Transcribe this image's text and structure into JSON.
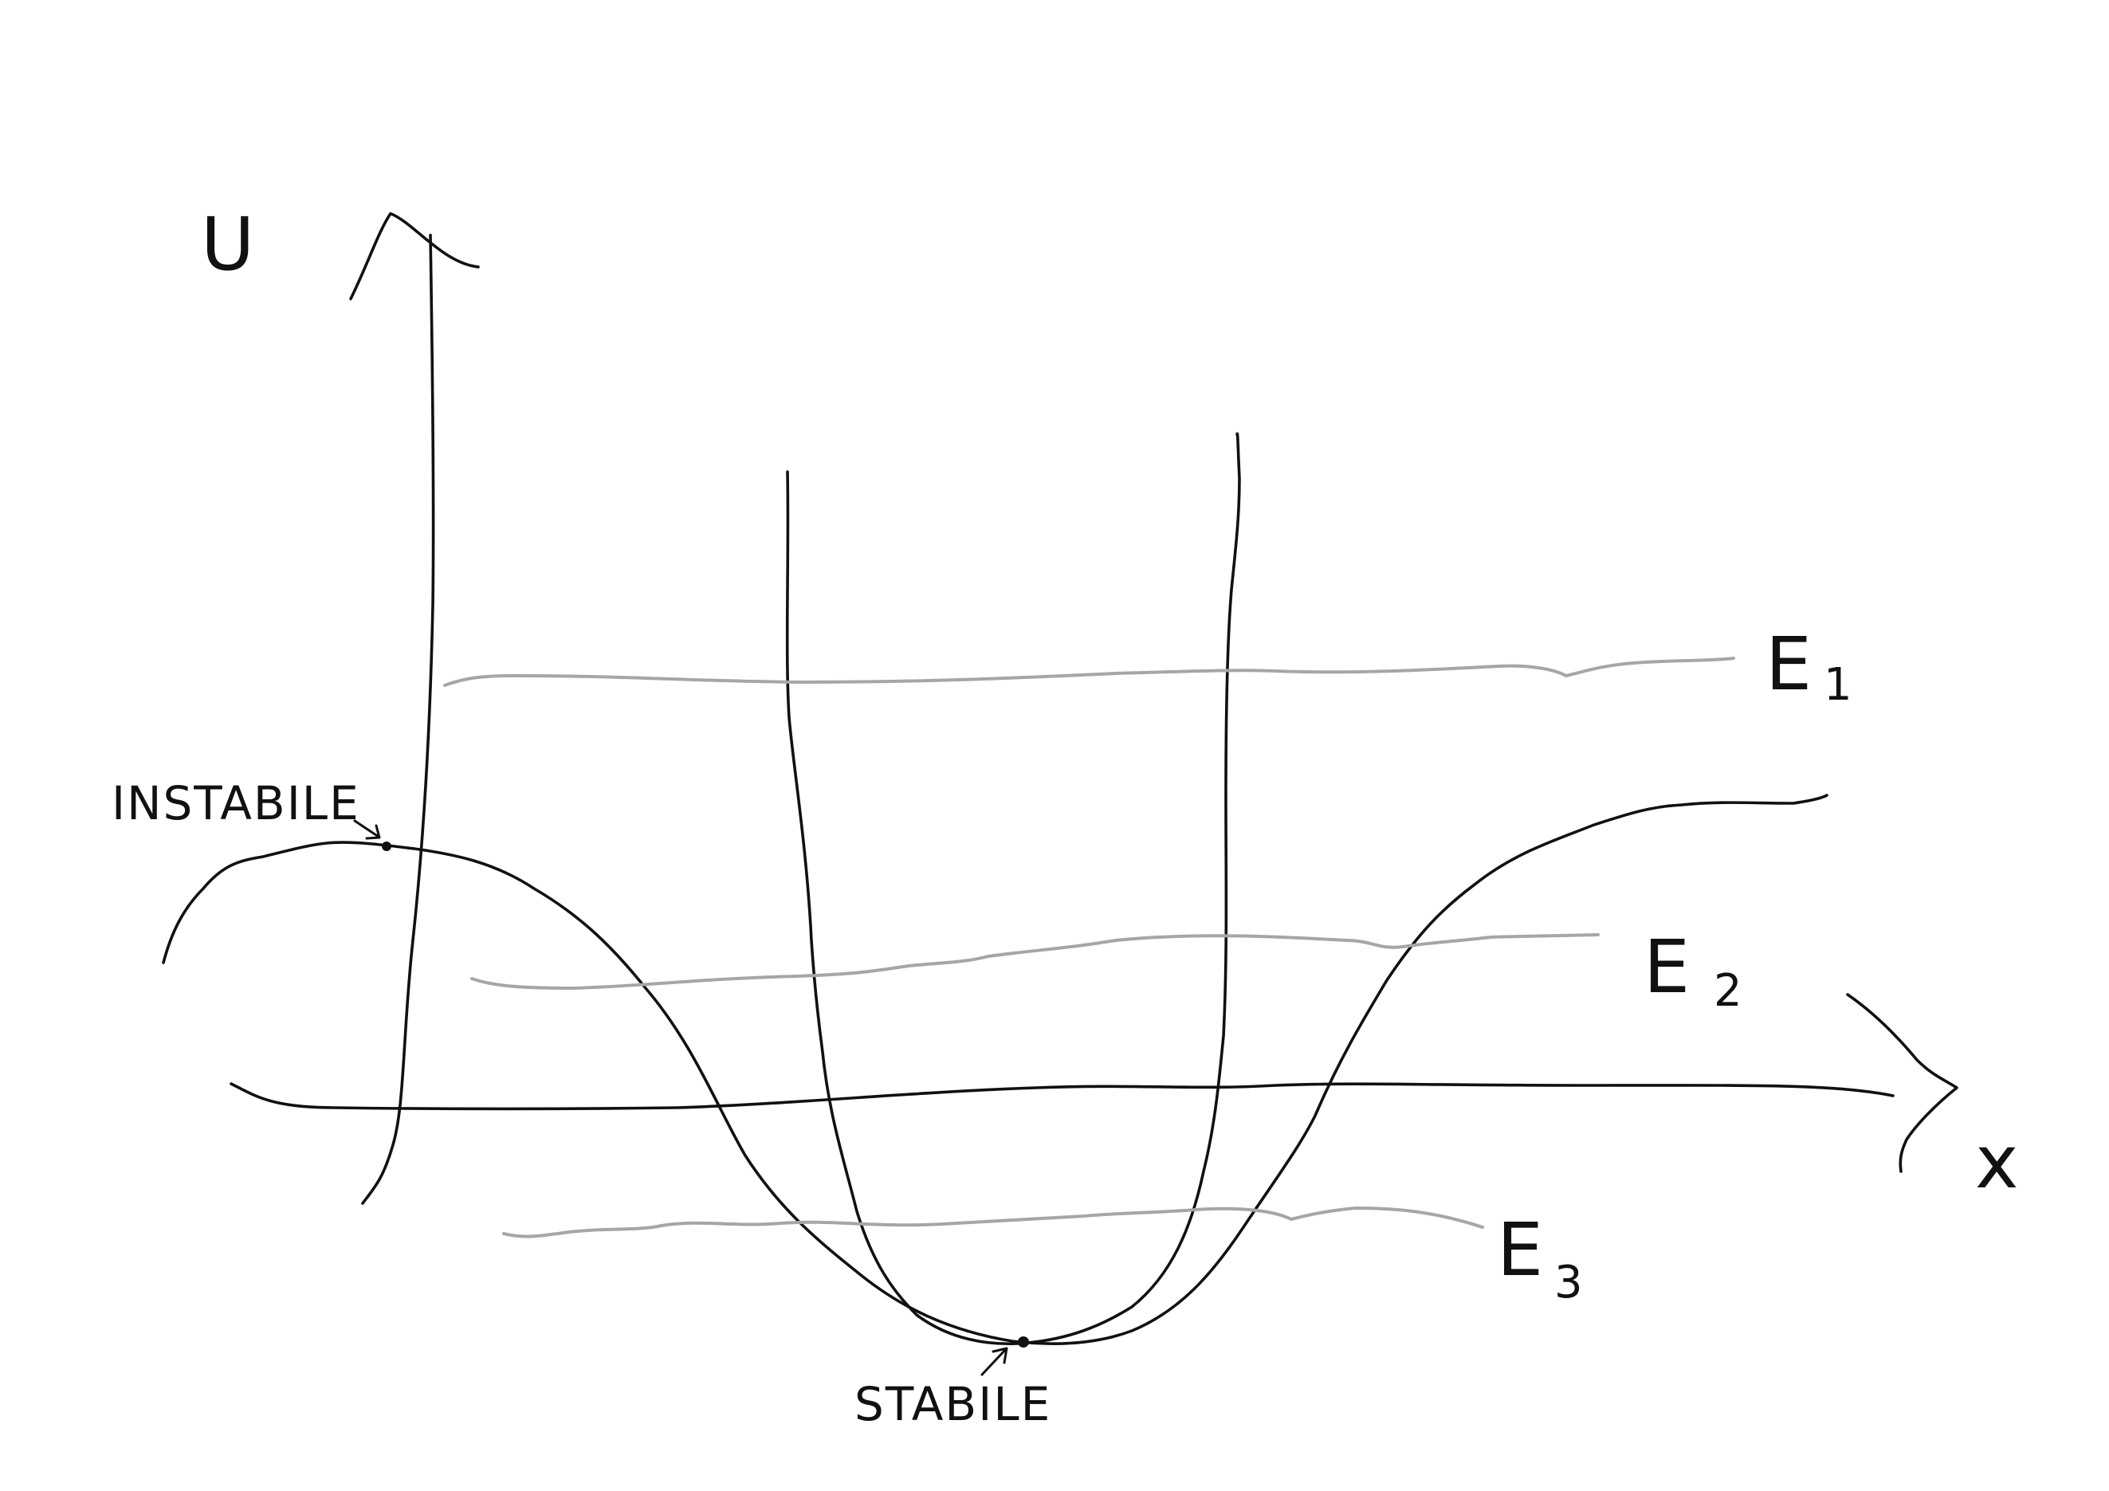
{
  "diagram": {
    "axes": {
      "y_label": "U",
      "x_label": "x"
    },
    "energy_levels": [
      {
        "letter": "E",
        "index": "1"
      },
      {
        "letter": "E",
        "index": "2"
      },
      {
        "letter": "E",
        "index": "3"
      }
    ],
    "annotations": {
      "unstable": "INSTABILE",
      "stable": "STABILE"
    },
    "colors": {
      "ink": "#111111",
      "energy_line": "#a6a6a6"
    }
  }
}
